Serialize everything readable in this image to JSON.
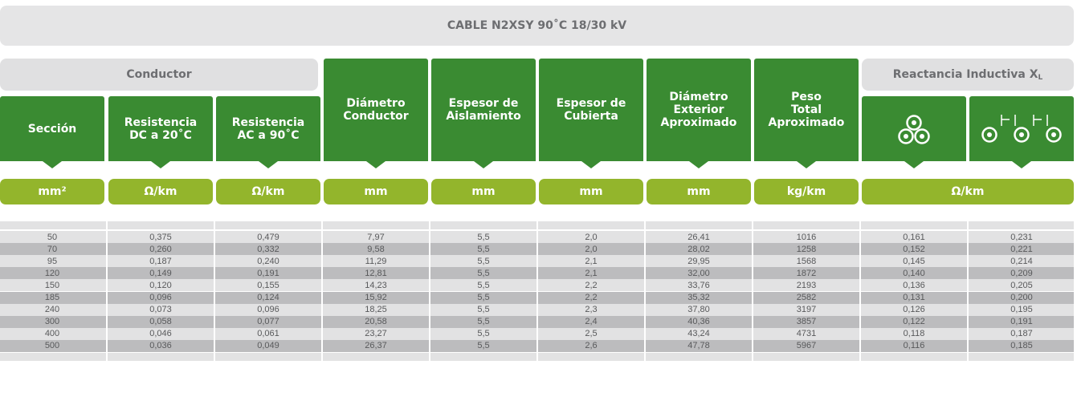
{
  "title": "CABLE N2XSY 90˚C 18/30 kV",
  "groups": {
    "conductor": "Conductor",
    "reactance": "Reactancia Inductiva X",
    "reactance_sub": "L"
  },
  "headers": [
    "Sección",
    "Resistencia\nDC a 20˚C",
    "Resistencia\nAC a 90˚C",
    "Diámetro\nConductor",
    "Espesor de\nAislamiento",
    "Espesor de\nCubierta",
    "Diámetro\nExterior\nAproximado",
    "Peso\nTotal\nAproximado"
  ],
  "reactance_icons": [
    "trefoil-cables-icon",
    "flat-spaced-cables-icon"
  ],
  "units": [
    "mm²",
    "Ω/km",
    "Ω/km",
    "mm",
    "mm",
    "mm",
    "mm",
    "kg/km",
    "Ω/km"
  ],
  "colors": {
    "header_green": "#3a8b32",
    "unit_green": "#93b52c",
    "row_light": "#e2e2e3",
    "row_dark": "#bcbcbe"
  },
  "rows": [
    [
      "50",
      "0,375",
      "0,479",
      "7,97",
      "5,5",
      "2,0",
      "26,41",
      "1016",
      "0,161",
      "0,231"
    ],
    [
      "70",
      "0,260",
      "0,332",
      "9,58",
      "5,5",
      "2,0",
      "28,02",
      "1258",
      "0,152",
      "0,221"
    ],
    [
      "95",
      "0,187",
      "0,240",
      "11,29",
      "5,5",
      "2,1",
      "29,95",
      "1568",
      "0,145",
      "0,214"
    ],
    [
      "120",
      "0,149",
      "0,191",
      "12,81",
      "5,5",
      "2,1",
      "32,00",
      "1872",
      "0,140",
      "0,209"
    ],
    [
      "150",
      "0,120",
      "0,155",
      "14,23",
      "5,5",
      "2,2",
      "33,76",
      "2193",
      "0,136",
      "0,205"
    ],
    [
      "185",
      "0,096",
      "0,124",
      "15,92",
      "5,5",
      "2,2",
      "35,32",
      "2582",
      "0,131",
      "0,200"
    ],
    [
      "240",
      "0,073",
      "0,096",
      "18,25",
      "5,5",
      "2,3",
      "37,80",
      "3197",
      "0,126",
      "0,195"
    ],
    [
      "300",
      "0,058",
      "0,077",
      "20,58",
      "5,5",
      "2,4",
      "40,36",
      "3857",
      "0,122",
      "0,191"
    ],
    [
      "400",
      "0,046",
      "0,061",
      "23,27",
      "5,5",
      "2,5",
      "43,24",
      "4731",
      "0,118",
      "0,187"
    ],
    [
      "500",
      "0,036",
      "0,049",
      "26,37",
      "5,5",
      "2,6",
      "47,78",
      "5967",
      "0,116",
      "0,185"
    ]
  ]
}
